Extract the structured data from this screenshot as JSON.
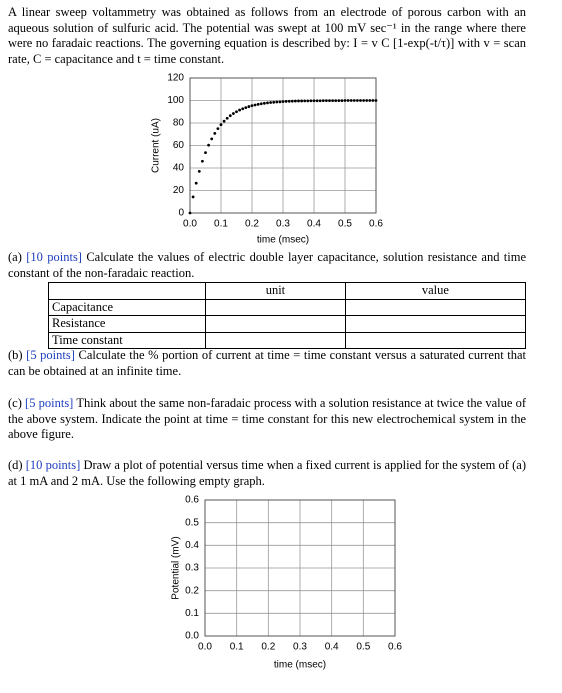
{
  "intro": "A linear sweep voltammetry was obtained as follows from an electrode of porous carbon with an aqueous solution of sulfuric acid. The potential was swept at 100 mV sec⁻¹ in the range where there were no faradaic reactions. The governing equation is described by: I = v C [1-exp(-t/τ)] with v = scan rate, C = capacitance and t = time constant.",
  "figures": [
    {
      "type": "scatter",
      "xlabel": "time (msec)",
      "ylabel": "Current (uA)",
      "xlim": [
        0,
        0.6
      ],
      "ylim": [
        0,
        120
      ],
      "xticks": [
        {
          "value": 0,
          "label": "0.0"
        },
        0.1,
        0.2,
        0.3,
        0.4,
        0.5,
        0.6
      ],
      "yticks": [
        0,
        20,
        40,
        60,
        80,
        100,
        120
      ],
      "grid": true,
      "color": "#000000",
      "x": [
        0,
        0.01,
        0.02,
        0.03,
        0.04,
        0.05,
        0.06,
        0.07,
        0.08,
        0.09,
        0.1,
        0.11,
        0.12,
        0.13,
        0.14,
        0.15,
        0.16,
        0.17,
        0.18,
        0.19,
        0.2,
        0.21,
        0.22,
        0.23,
        0.24,
        0.25,
        0.26,
        0.27,
        0.28,
        0.29,
        0.3,
        0.31,
        0.32,
        0.33,
        0.34,
        0.35,
        0.36,
        0.37,
        0.38,
        0.39,
        0.4,
        0.41,
        0.42,
        0.43,
        0.44,
        0.45,
        0.46,
        0.47,
        0.48,
        0.49,
        0.5,
        0.51,
        0.52,
        0.53,
        0.54,
        0.55,
        0.56,
        0.57,
        0.58,
        0.59,
        0.6
      ],
      "values": [
        0,
        14.3,
        26.5,
        37,
        46,
        53.7,
        60.3,
        65.9,
        70.8,
        75,
        78.5,
        81.6,
        84.2,
        86.5,
        88.4,
        90,
        91.5,
        92.7,
        93.7,
        94.6,
        95.4,
        96,
        96.6,
        97.1,
        97.5,
        97.9,
        98.2,
        98.4,
        98.7,
        98.8,
        99,
        99.2,
        99.3,
        99.4,
        99.5,
        99.6,
        99.6,
        99.7,
        99.7,
        99.8,
        99.8,
        99.8,
        99.8,
        99.9,
        99.9,
        99.9,
        99.9,
        99.9,
        99.9,
        99.9,
        100,
        100,
        100,
        100,
        100,
        100,
        100,
        100,
        100,
        100,
        100
      ]
    },
    {
      "type": "scatter",
      "xlabel": "time (msec)",
      "ylabel": "Potential (mV)",
      "xlim": [
        0,
        0.6
      ],
      "ylim": [
        0,
        0.6
      ],
      "xticks": [
        {
          "value": 0,
          "label": "0.0"
        },
        0.1,
        0.2,
        0.3,
        0.4,
        0.5,
        0.6
      ],
      "yticks": [
        {
          "value": 0,
          "label": "0.0"
        },
        0.1,
        0.2,
        0.3,
        0.4,
        0.5,
        0.6
      ],
      "grid": true
    }
  ],
  "parts": [
    {
      "label": "(a)",
      "points": "[10 points]",
      "text": "Calculate the values of electric double layer capacitance, solution resistance and time constant of the non-faradaic reaction."
    },
    {
      "label": "(b)",
      "points": "[5 points]",
      "text": "Calculate the % portion of current at time = time constant versus a saturated current that can be obtained at an infinite time."
    },
    {
      "label": "(c)",
      "points": "[5 points]",
      "text": "Think about the same non-faradaic process with a solution resistance at twice the value of the above system. Indicate the point at time = time constant for this new electrochemical system in the above figure."
    },
    {
      "label": "(d)",
      "points": "[10 points]",
      "text": "Draw a plot of potential versus time when a fixed current is applied for the system of (a) at 1 mA and 2 mA. Use the following empty graph."
    }
  ],
  "table": {
    "columns": [
      "unit",
      "value"
    ],
    "rows": [
      "Capacitance",
      "Resistance",
      "Time constant"
    ]
  }
}
